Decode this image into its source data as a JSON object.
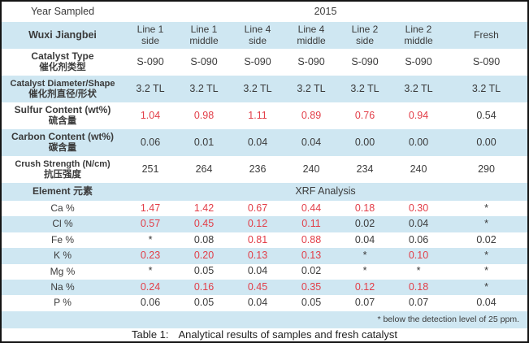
{
  "colors": {
    "band_blue": "#cfe7f2",
    "highlight_red": "#e23e48",
    "text_dark": "#3b3b3b",
    "frame_border": "#141414"
  },
  "year_row": {
    "label": "Year Sampled",
    "value": "2015"
  },
  "header": {
    "site_label": "Wuxi Jiangbei",
    "columns": [
      {
        "line1": "Line 1",
        "line2": "side"
      },
      {
        "line1": "Line 1",
        "line2": "middle"
      },
      {
        "line1": "Line 4",
        "line2": "side"
      },
      {
        "line1": "Line 4",
        "line2": "middle"
      },
      {
        "line1": "Line 2",
        "line2": "side"
      },
      {
        "line1": "Line 2",
        "line2": "middle"
      },
      {
        "line1": "Fresh",
        "line2": ""
      }
    ]
  },
  "property_rows": [
    {
      "label_en": "Catalyst Type",
      "label_zh": "催化剂类型",
      "values": [
        "S-090",
        "S-090",
        "S-090",
        "S-090",
        "S-090",
        "S-090",
        "S-090"
      ],
      "red": [
        false,
        false,
        false,
        false,
        false,
        false,
        false
      ]
    },
    {
      "label_en": "Catalyst Diameter/Shape",
      "label_zh": "催化剂直径/形状",
      "values": [
        "3.2 TL",
        "3.2 TL",
        "3.2 TL",
        "3.2 TL",
        "3.2 TL",
        "3.2 TL",
        "3.2 TL"
      ],
      "red": [
        false,
        false,
        false,
        false,
        false,
        false,
        false
      ]
    },
    {
      "label_en": "Sulfur Content (wt%)",
      "label_zh": "硫含量",
      "values": [
        "1.04",
        "0.98",
        "1.11",
        "0.89",
        "0.76",
        "0.94",
        "0.54"
      ],
      "red": [
        true,
        true,
        true,
        true,
        true,
        true,
        false
      ]
    },
    {
      "label_en": "Carbon Content (wt%)",
      "label_zh": "碳含量",
      "values": [
        "0.06",
        "0.01",
        "0.04",
        "0.04",
        "0.00",
        "0.00",
        "0.00"
      ],
      "red": [
        false,
        false,
        false,
        false,
        false,
        false,
        false
      ]
    },
    {
      "label_en": "Crush Strength (N/cm)",
      "label_zh": "抗压强度",
      "values": [
        "251",
        "264",
        "236",
        "240",
        "234",
        "240",
        "290"
      ],
      "red": [
        false,
        false,
        false,
        false,
        false,
        false,
        false
      ]
    }
  ],
  "element_section": {
    "label_en": "Element",
    "label_zh": "元素",
    "analysis_label": "XRF Analysis",
    "rows": [
      {
        "element": "Ca %",
        "values": [
          "1.47",
          "1.42",
          "0.67",
          "0.44",
          "0.18",
          "0.30",
          "*"
        ],
        "red": [
          true,
          true,
          true,
          true,
          true,
          true,
          false
        ]
      },
      {
        "element": "Cl %",
        "values": [
          "0.57",
          "0.45",
          "0.12",
          "0.11",
          "0.02",
          "0.04",
          "*"
        ],
        "red": [
          true,
          true,
          true,
          true,
          false,
          false,
          false
        ]
      },
      {
        "element": "Fe %",
        "values": [
          "*",
          "0.08",
          "0.81",
          "0.88",
          "0.04",
          "0.06",
          "0.02"
        ],
        "red": [
          false,
          false,
          true,
          true,
          false,
          false,
          false
        ]
      },
      {
        "element": "K %",
        "values": [
          "0.23",
          "0.20",
          "0.13",
          "0.13",
          "*",
          "0.10",
          "*"
        ],
        "red": [
          true,
          true,
          true,
          true,
          false,
          true,
          false
        ]
      },
      {
        "element": "Mg %",
        "values": [
          "*",
          "0.05",
          "0.04",
          "0.02",
          "*",
          "*",
          "*"
        ],
        "red": [
          false,
          false,
          false,
          false,
          false,
          false,
          false
        ]
      },
      {
        "element": "Na %",
        "values": [
          "0.24",
          "0.16",
          "0.45",
          "0.35",
          "0.12",
          "0.18",
          "*"
        ],
        "red": [
          true,
          true,
          true,
          true,
          true,
          true,
          false
        ]
      },
      {
        "element": "P %",
        "values": [
          "0.06",
          "0.05",
          "0.04",
          "0.05",
          "0.07",
          "0.07",
          "0.04"
        ],
        "red": [
          false,
          false,
          false,
          false,
          false,
          false,
          false
        ]
      }
    ]
  },
  "footnote": "* below the detection level of 25 ppm.",
  "caption": {
    "prefix": "Table 1:",
    "text": "Analytical results of samples and fresh catalyst"
  }
}
